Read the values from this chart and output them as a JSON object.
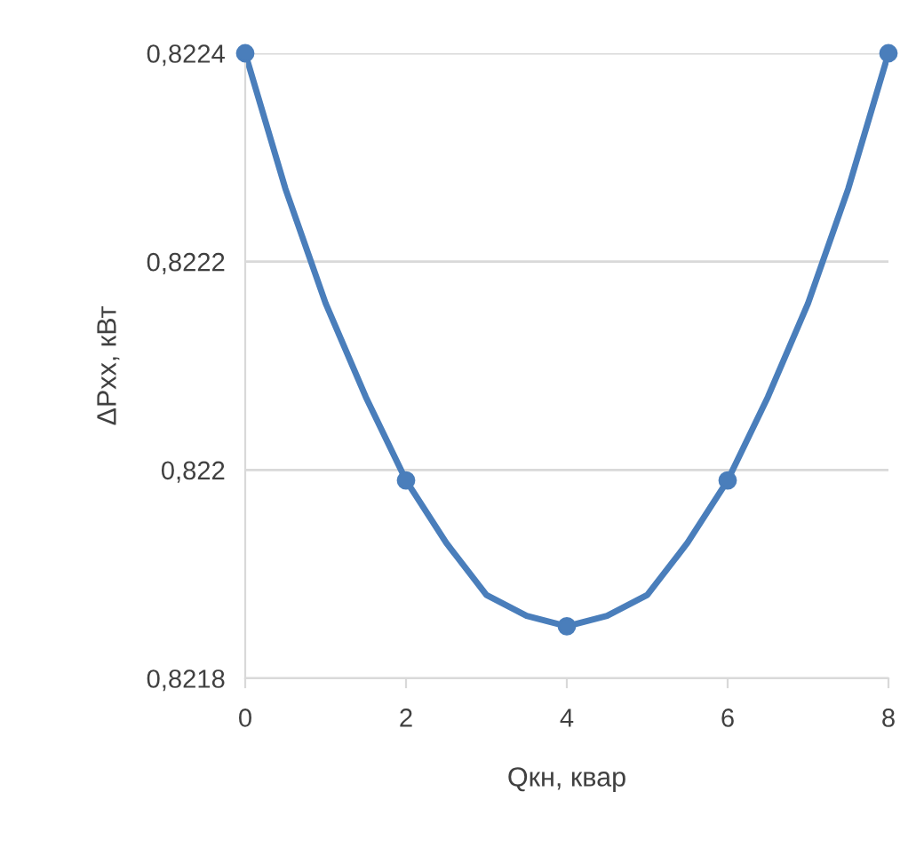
{
  "chart_data": {
    "type": "line",
    "xlabel": "Qкн, квар",
    "ylabel": "ΔPxx, кВт",
    "x": [
      0,
      2,
      4,
      6,
      8
    ],
    "series": [
      {
        "marker": "none",
        "color": "#4a7ebb",
        "x": [
          0,
          0.5,
          1,
          1.5,
          2,
          2.5,
          3,
          3.5,
          4,
          4.5,
          5,
          5.5,
          6,
          6.5,
          7,
          7.5,
          8
        ],
        "values": [
          0.8224,
          0.82227,
          0.82216,
          0.82207,
          0.82199,
          0.82193,
          0.82188,
          0.82186,
          0.82185,
          0.82186,
          0.82188,
          0.82193,
          0.82199,
          0.82207,
          0.82216,
          0.82227,
          0.8224
        ]
      },
      {
        "type": "scatter",
        "color": "#4a7ebb",
        "values": [
          0.8224,
          0.82199,
          0.82185,
          0.82199,
          0.8224
        ]
      }
    ],
    "xlim": [
      0,
      8
    ],
    "xticks": [
      0,
      2,
      4,
      6,
      8
    ],
    "ylim": [
      0.8218,
      0.8224
    ],
    "yticks": [
      {
        "value": 0.8218,
        "label": "0,8218"
      },
      {
        "value": 0.822,
        "label": "0,822"
      },
      {
        "value": 0.8222,
        "label": "0,8222"
      },
      {
        "value": 0.8224,
        "label": "0,8224"
      }
    ],
    "grid": "y",
    "marker": "circle",
    "line_style": "solid"
  }
}
